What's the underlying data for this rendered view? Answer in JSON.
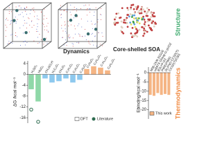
{
  "header": {
    "dynamics": "Dynamics",
    "soa": "Core-shelled SOA",
    "structure": "Structure",
    "thermodynamics": "Thermodynamics"
  },
  "chart_data": [
    {
      "type": "bar",
      "ylabel": "ΔG /kcal mol⁻¹",
      "categories": [
        "H₂SO₄",
        "HNO₃",
        "CH₃SO₃H",
        "H₂C₂O₄",
        "CH₂O₂",
        "C₂H₄O₂",
        "C₃H₄O₄",
        "C₄H₆O₄",
        "C₅H₈O₄",
        "C₆H₁₀O₄",
        "C₇H₁₂O₄",
        "C₈H₁₄O₄"
      ],
      "series": [
        {
          "name": "DFT",
          "values": [
            -5.5,
            -10,
            -1.5,
            -3,
            -2.5,
            -1.5,
            -3,
            -2,
            2,
            3,
            2.5,
            1.5
          ],
          "colors": [
            "#8fd8a8",
            "#8fd8a8",
            "#8ec9ee",
            "#8ec9ee",
            "#8ec9ee",
            "#8ec9ee",
            "#8ec9ee",
            "#8ec9ee",
            "#f5b584",
            "#f5b584",
            "#f5b584",
            "#f5b584"
          ]
        },
        {
          "name": "Literature",
          "marker": "circle",
          "color": "#2e6b4f",
          "values": [
            -13,
            -17.5,
            null,
            null,
            null,
            null,
            null,
            null,
            null,
            null,
            null,
            null
          ]
        }
      ],
      "ylim": [
        -18,
        5
      ],
      "yticks": [
        4,
        0,
        -4,
        -8,
        -12,
        -16
      ]
    },
    {
      "type": "bar",
      "ylabel": "Ebinding/kcal mol⁻¹",
      "categories": [
        "M06-2X/6-31G(d)",
        "ωB97X-D/aug-cc-pVDZ",
        "B3LYP-D3",
        "PW91PW91",
        "DLPNO-CCSD(T)",
        "CCSD(T)/CBS"
      ],
      "series": [
        {
          "name": "This work",
          "color": "#f5b584",
          "values": [
            -12,
            -12.5,
            -11,
            -12,
            -11.5,
            -12
          ]
        }
      ],
      "ylim": [
        -25,
        3
      ],
      "yticks": [
        0,
        -5,
        -10,
        -15,
        -20
      ]
    }
  ]
}
